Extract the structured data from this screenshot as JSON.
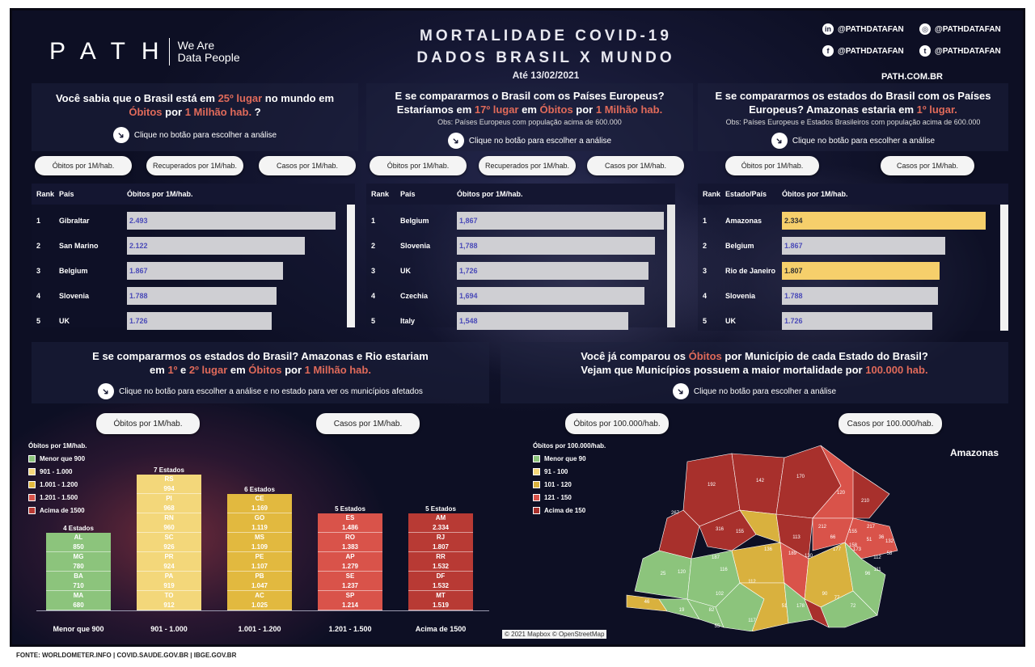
{
  "header": {
    "logo": "PATH",
    "tagline_1": "We Are",
    "tagline_2": "Data People",
    "title_1": "MORTALIDADE COVID-19",
    "title_2": "DADOS BRASIL X MUNDO",
    "date": "Até 13/02/2021",
    "social": [
      {
        "icon": "linkedin-icon",
        "glyph": "in",
        "handle": "@PATHDATAFAN"
      },
      {
        "icon": "instagram-icon",
        "glyph": "◎",
        "handle": "@PATHDATAFAN"
      },
      {
        "icon": "facebook-icon",
        "glyph": "f",
        "handle": "@PATHDATAFAN"
      },
      {
        "icon": "twitter-icon",
        "glyph": "t",
        "handle": "@PATHDATAFAN"
      }
    ],
    "site": "PATH.COM.BR"
  },
  "hint_text": "Clique no botão para escolher a análise",
  "panel1": {
    "q_a": "Você sabia que o Brasil está em ",
    "q_b": "25º lugar",
    "q_c": " no mundo em",
    "q_d": "Óbitos",
    "q_e": " por ",
    "q_f": "1 Milhão hab.",
    "q_g": " ?",
    "buttons": [
      "Óbitos por 1M/hab.",
      "Recuperados por 1M/hab.",
      "Casos por 1M/hab."
    ],
    "headers": [
      "Rank",
      "País",
      "Óbitos por 1M/hab."
    ],
    "rows": [
      {
        "rank": "1",
        "name": "Gibraltar",
        "value": "2.493",
        "num": 2493
      },
      {
        "rank": "2",
        "name": "San Marino",
        "value": "2.122",
        "num": 2122
      },
      {
        "rank": "3",
        "name": "Belgium",
        "value": "1.867",
        "num": 1867
      },
      {
        "rank": "4",
        "name": "Slovenia",
        "value": "1.788",
        "num": 1788
      },
      {
        "rank": "5",
        "name": "UK",
        "value": "1.726",
        "num": 1726
      }
    ]
  },
  "panel2": {
    "q_a": "E se compararmos o Brasil com os Países  Europeus?",
    "q_b": "Estaríamos em ",
    "q_c": "17º lugar",
    "q_d": " em ",
    "q_e": "Óbitos",
    "q_f": " por ",
    "q_g": "1 Milhão hab.",
    "obs": "Obs: Países Europeus com população acima de 600.000",
    "buttons": [
      "Óbitos por 1M/hab.",
      "Recuperados por 1M/hab.",
      "Casos por 1M/hab."
    ],
    "headers": [
      "Rank",
      "País",
      "Óbitos por 1M/hab."
    ],
    "rows": [
      {
        "rank": "1",
        "name": "Belgium",
        "value": "1,867",
        "num": 1867
      },
      {
        "rank": "2",
        "name": "Slovenia",
        "value": "1,788",
        "num": 1788
      },
      {
        "rank": "3",
        "name": "UK",
        "value": "1,726",
        "num": 1726
      },
      {
        "rank": "4",
        "name": "Czechia",
        "value": "1,694",
        "num": 1694
      },
      {
        "rank": "5",
        "name": "Italy",
        "value": "1,548",
        "num": 1548
      }
    ]
  },
  "panel3": {
    "q_a": "E se compararmos os estados do Brasil com os Países",
    "q_b": "Europeus?  Amazonas estaria  em ",
    "q_c": "1º lugar.",
    "obs": "Obs: Países Europeus e Estados Brasileiros com população acima de 600.000",
    "buttons": [
      "Óbitos por 1M/hab.",
      "Casos por 1M/hab."
    ],
    "headers": [
      "Rank",
      "Estado/País",
      "Óbitos por 1M/hab."
    ],
    "rows": [
      {
        "rank": "1",
        "name": "Amazonas",
        "value": "2.334",
        "num": 2334,
        "highlight": true
      },
      {
        "rank": "2",
        "name": "Belgium",
        "value": "1.867",
        "num": 1867,
        "highlight": false
      },
      {
        "rank": "3",
        "name": "Rio de Janeiro",
        "value": "1.807",
        "num": 1807,
        "highlight": true
      },
      {
        "rank": "4",
        "name": "Slovenia",
        "value": "1.788",
        "num": 1788,
        "highlight": false
      },
      {
        "rank": "5",
        "name": "UK",
        "value": "1.726",
        "num": 1726,
        "highlight": false
      }
    ]
  },
  "panel4": {
    "q_a": "E se compararmos os estados do Brasil? Amazonas e Rio estariam",
    "q_b": "em  ",
    "q_c": "1º",
    "q_d": " e ",
    "q_e": "2º lugar",
    "q_f": " em ",
    "q_g": "Óbitos",
    "q_h": " por ",
    "q_i": "1 Milhão hab.",
    "hint": "Clique no botão para escolher a análise e no estado para ver os municípios afetados",
    "buttons": [
      "Óbitos por 1M/hab.",
      "Casos por 1M/hab."
    ],
    "legend_title": "Óbitos por 1M/hab.",
    "legend": [
      {
        "label": "Menor que 900",
        "color": "#8cc47c"
      },
      {
        "label": "901 - 1.000",
        "color": "#f3d77a"
      },
      {
        "label": "1.001 - 1.200",
        "color": "#e2b93f"
      },
      {
        "label": "1.201 - 1.500",
        "color": "#d9534a"
      },
      {
        "label": "Acima de 1500",
        "color": "#b83a34"
      }
    ],
    "groups": [
      {
        "title": "4 Estados",
        "label": "Menor que 900",
        "color": "#8cc47c",
        "states": [
          [
            "AL",
            "850"
          ],
          [
            "MG",
            "780"
          ],
          [
            "BA",
            "710"
          ],
          [
            "MA",
            "680"
          ]
        ]
      },
      {
        "title": "7 Estados",
        "label": "901 - 1.000",
        "color": "#f3d77a",
        "states": [
          [
            "RS",
            "994"
          ],
          [
            "PI",
            "968"
          ],
          [
            "RN",
            "960"
          ],
          [
            "SC",
            "926"
          ],
          [
            "PR",
            "924"
          ],
          [
            "PA",
            "919"
          ],
          [
            "TO",
            "912"
          ]
        ]
      },
      {
        "title": "6 Estados",
        "label": "1.001 - 1.200",
        "color": "#e2b93f",
        "states": [
          [
            "CE",
            "1.169"
          ],
          [
            "GO",
            "1.119"
          ],
          [
            "MS",
            "1.109"
          ],
          [
            "PE",
            "1.107"
          ],
          [
            "PB",
            "1.047"
          ],
          [
            "AC",
            "1.025"
          ]
        ]
      },
      {
        "title": "5 Estados",
        "label": "1.201 - 1.500",
        "color": "#d9534a",
        "states": [
          [
            "ES",
            "1.486"
          ],
          [
            "RO",
            "1.383"
          ],
          [
            "AP",
            "1.279"
          ],
          [
            "SE",
            "1.237"
          ],
          [
            "SP",
            "1.214"
          ]
        ]
      },
      {
        "title": "5 Estados",
        "label": "Acima de 1500",
        "color": "#b83a34",
        "states": [
          [
            "AM",
            "2.334"
          ],
          [
            "RJ",
            "1.807"
          ],
          [
            "RR",
            "1.532"
          ],
          [
            "DF",
            "1.532"
          ],
          [
            "MT",
            "1.519"
          ]
        ]
      }
    ]
  },
  "panel5": {
    "q_a": "Você já comparou os ",
    "q_b": "Óbitos",
    "q_c": " por Município de cada Estado do Brasil?",
    "q_d": "Vejam que Municípios possuem a maior mortalidade por ",
    "q_e": "100.000 hab.",
    "buttons": [
      "Óbitos por 100.000/hab.",
      "Casos por 100.000/hab."
    ],
    "legend_title": "Óbitos por 100.000/hab.",
    "legend": [
      {
        "label": "Menor que 90",
        "color": "#8cc47c"
      },
      {
        "label": "91 - 100",
        "color": "#f3d77a"
      },
      {
        "label": "101 - 120",
        "color": "#d9b13e"
      },
      {
        "label": "121 - 150",
        "color": "#d9534a"
      },
      {
        "label": "Acima de 150",
        "color": "#a8302c"
      }
    ],
    "state_name": "Amazonas",
    "map_labels": [
      "192",
      "142",
      "170",
      "267",
      "120",
      "210",
      "316",
      "155",
      "113",
      "66",
      "51",
      "136",
      "212",
      "155",
      "217",
      "36",
      "132",
      "177",
      "158",
      "173",
      "187",
      "189",
      "130",
      "96",
      "111",
      "25",
      "120",
      "116",
      "112",
      "102",
      "90",
      "77",
      "72",
      "46",
      "19",
      "82",
      "51",
      "178",
      "55",
      "117",
      "112",
      "58"
    ],
    "attribution": "© 2021 Mapbox © OpenStreetMap"
  },
  "footer": "FONTE:  WORLDOMETER.INFO  |  COVID.SAUDE.GOV.BR  |  IBGE.GOV.BR"
}
